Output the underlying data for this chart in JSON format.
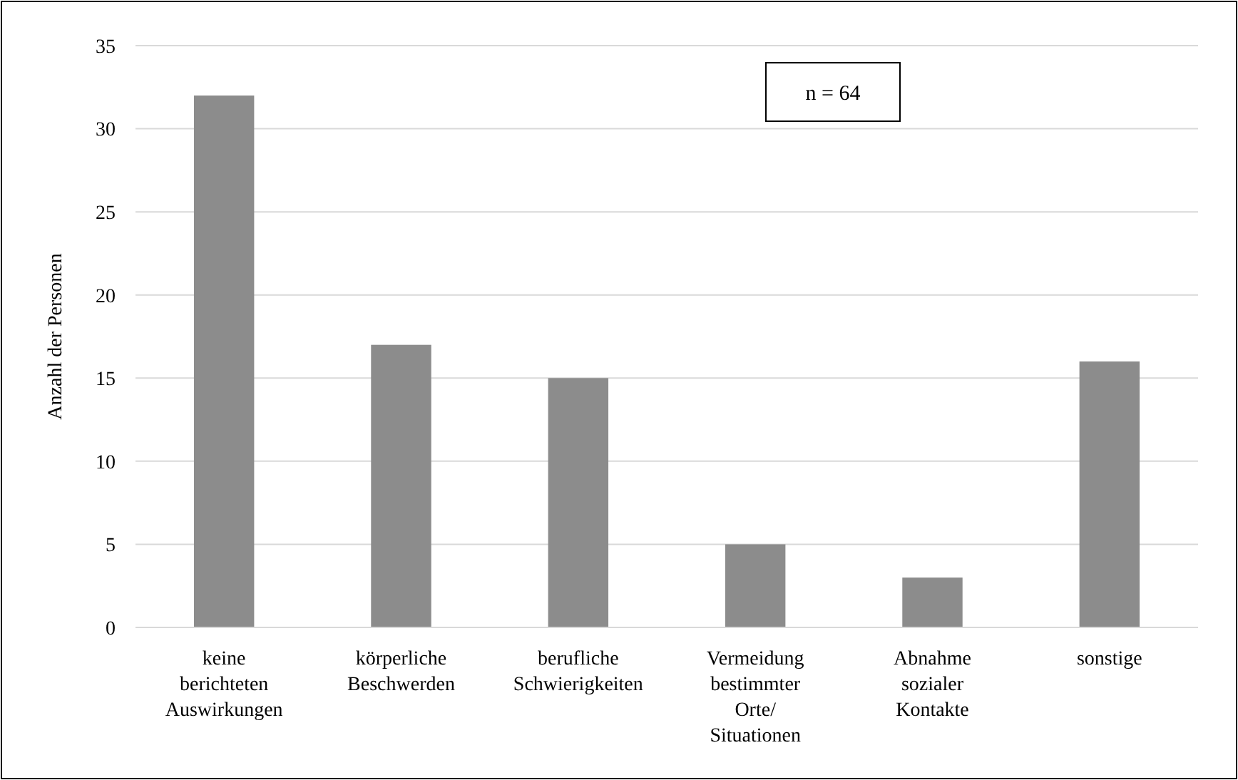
{
  "chart_data": {
    "type": "bar",
    "ylabel": "Anzahl der Personen",
    "categories": [
      "keine berichteten Auswirkungen",
      "körperliche Beschwerden",
      "berufliche Schwierigkeiten",
      "Vermeidung bestimmter Orte/Situationen",
      "Abnahme sozialer Kontakte",
      "sonstige"
    ],
    "values": [
      32,
      17,
      15,
      5,
      3,
      16
    ],
    "color": "#8c8c8c",
    "ylim": [
      0,
      35
    ],
    "yticks": [
      0,
      5,
      10,
      15,
      20,
      25,
      30,
      35
    ],
    "grid": "y",
    "annotations": [
      "n = 64"
    ]
  }
}
